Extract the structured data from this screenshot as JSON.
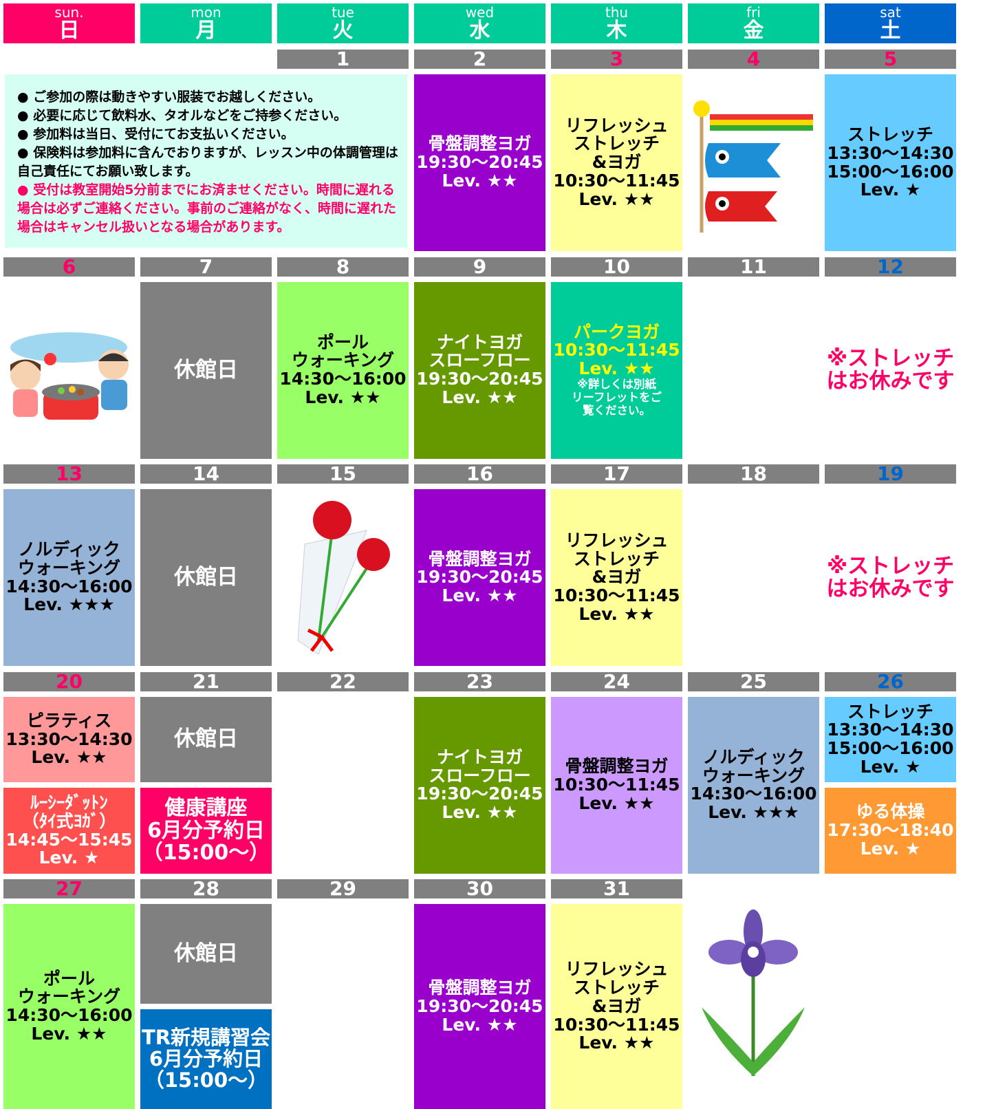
{
  "header": {
    "days": [
      {
        "en": "sun.",
        "ja": "日",
        "color": "#ff0066"
      },
      {
        "en": "mon",
        "ja": "月",
        "color": "#00cc99"
      },
      {
        "en": "tue",
        "ja": "火",
        "color": "#00cc99"
      },
      {
        "en": "wed",
        "ja": "水",
        "color": "#00cc99"
      },
      {
        "en": "thu",
        "ja": "木",
        "color": "#00cc99"
      },
      {
        "en": "fri",
        "ja": "金",
        "color": "#00cc99"
      },
      {
        "en": "sat",
        "ja": "土",
        "color": "#0066cc"
      }
    ]
  },
  "notice": {
    "items": [
      "● ご参加の際は動きやすい服装でお越しください。",
      "● 必要に応じて飲料水、タオルなどをご持参ください。",
      "● 参加料は当日、受付にてお支払いください。",
      "● 保険料は参加料に含んでおりますが、レッスン中の体調管理は自己責任にてお願い致します。"
    ],
    "warning": "● 受付は教室開始5分前までにお済ませください。時間に遅れる場合は必ずご連絡ください。事前のご連絡がなく、時間に遅れた場合はキャンセル扱いとなる場合があります。"
  },
  "weeks": [
    {
      "dates": [
        null,
        null,
        {
          "text": "1",
          "color": "#ffffff"
        },
        {
          "text": "2",
          "color": "#ffffff"
        },
        {
          "text": "3",
          "color": "#ff0066"
        },
        {
          "text": "4",
          "color": "#ff0066"
        },
        {
          "text": "5",
          "color": "#ff0066"
        }
      ],
      "cells": [
        null,
        null,
        null,
        [
          {
            "lines": [
              "骨盤調整ヨガ",
              "19:30～20:45",
              "Lev. ★★"
            ],
            "bg": "#9900cc",
            "fg": "#ffffff"
          }
        ],
        [
          {
            "lines": [
              "リフレッシュ",
              "ストレッチ",
              "&ヨガ",
              "10:30～11:45",
              "Lev. ★★"
            ],
            "bg": "#ffff99",
            "fg": "#000000"
          }
        ],
        null,
        [
          {
            "lines": [
              "ストレッチ",
              "13:30～14:30",
              "15:00～16:00",
              "Lev. ★"
            ],
            "bg": "#66ccff",
            "fg": "#000000"
          }
        ]
      ]
    },
    {
      "dates": [
        {
          "text": "6",
          "color": "#ff0066"
        },
        {
          "text": "7",
          "color": "#ffffff"
        },
        {
          "text": "8",
          "color": "#ffffff"
        },
        {
          "text": "9",
          "color": "#ffffff"
        },
        {
          "text": "10",
          "color": "#ffffff"
        },
        {
          "text": "11",
          "color": "#ffffff"
        },
        {
          "text": "12",
          "color": "#0066cc"
        }
      ],
      "cells": [
        null,
        [
          {
            "lines": [
              "休館日"
            ],
            "bg": "#808080",
            "fg": "#ffffff"
          }
        ],
        [
          {
            "lines": [
              "ポール",
              "ウォーキング",
              "14:30～16:00",
              "Lev. ★★"
            ],
            "bg": "#99ff66",
            "fg": "#000000"
          }
        ],
        [
          {
            "lines": [
              "ナイトヨガ",
              "スローフロー",
              "19:30～20:45",
              "Lev. ★★"
            ],
            "bg": "#669900",
            "fg": "#ffffff"
          }
        ],
        [
          {
            "lines": [
              "パークヨガ",
              "10:30～11:45",
              "Lev. ★★"
            ],
            "bg": "#00cc99",
            "fg": "#ffff00",
            "note": [
              "※詳しくは別紙",
              "リーフレットをご",
              "覧ください。"
            ],
            "note_color": "#ffffff"
          }
        ],
        null,
        [
          {
            "lines": [
              "※ストレッチ",
              "はお休みです"
            ],
            "bg": "#ffffff",
            "fg": "#ff0066"
          }
        ]
      ]
    },
    {
      "dates": [
        {
          "text": "13",
          "color": "#ff0066"
        },
        {
          "text": "14",
          "color": "#ffffff"
        },
        {
          "text": "15",
          "color": "#ffffff"
        },
        {
          "text": "16",
          "color": "#ffffff"
        },
        {
          "text": "17",
          "color": "#ffffff"
        },
        {
          "text": "18",
          "color": "#ffffff"
        },
        {
          "text": "19",
          "color": "#0066cc"
        }
      ],
      "cells": [
        [
          {
            "lines": [
              "ノルディック",
              "ウォーキング",
              "14:30～16:00",
              "Lev. ★★★"
            ],
            "bg": "#95b3d7",
            "fg": "#000000"
          }
        ],
        [
          {
            "lines": [
              "休館日"
            ],
            "bg": "#808080",
            "fg": "#ffffff"
          }
        ],
        null,
        [
          {
            "lines": [
              "骨盤調整ヨガ",
              "19:30～20:45",
              "Lev. ★★"
            ],
            "bg": "#9900cc",
            "fg": "#ffffff"
          }
        ],
        [
          {
            "lines": [
              "リフレッシュ",
              "ストレッチ",
              "&ヨガ",
              "10:30～11:45",
              "Lev. ★★"
            ],
            "bg": "#ffff99",
            "fg": "#000000"
          }
        ],
        null,
        [
          {
            "lines": [
              "※ストレッチ",
              "はお休みです"
            ],
            "bg": "#ffffff",
            "fg": "#ff0066"
          }
        ]
      ]
    },
    {
      "dates": [
        {
          "text": "20",
          "color": "#ff0066"
        },
        {
          "text": "21",
          "color": "#ffffff"
        },
        {
          "text": "22",
          "color": "#ffffff"
        },
        {
          "text": "23",
          "color": "#ffffff"
        },
        {
          "text": "24",
          "color": "#ffffff"
        },
        {
          "text": "25",
          "color": "#ffffff"
        },
        {
          "text": "26",
          "color": "#0066cc"
        }
      ],
      "cells": [
        [
          {
            "lines": [
              "ピラティス",
              "13:30～14:30",
              "Lev. ★★"
            ],
            "bg": "#ff9999",
            "fg": "#000000"
          },
          {
            "lines": [
              "ﾙｰｼｰﾀﾞｯﾄﾝ",
              "（ﾀｲ式ﾖｶﾞ）",
              "14:45～15:45",
              "Lev. ★"
            ],
            "bg": "#ff5050",
            "fg": "#ffffff"
          }
        ],
        [
          {
            "lines": [
              "休館日"
            ],
            "bg": "#808080",
            "fg": "#ffffff"
          },
          {
            "lines": [
              "健康講座",
              "6月分予約日",
              "（15:00～）"
            ],
            "bg": "#ff0066",
            "fg": "#ffffff"
          }
        ],
        null,
        [
          {
            "lines": [
              "ナイトヨガ",
              "スローフロー",
              "19:30～20:45",
              "Lev. ★★"
            ],
            "bg": "#669900",
            "fg": "#ffffff"
          }
        ],
        [
          {
            "lines": [
              "骨盤調整ヨガ",
              "10:30～11:45",
              "Lev. ★★"
            ],
            "bg": "#cc99ff",
            "fg": "#000000"
          }
        ],
        [
          {
            "lines": [
              "ノルディック",
              "ウォーキング",
              "14:30～16:00",
              "Lev. ★★★"
            ],
            "bg": "#95b3d7",
            "fg": "#000000"
          }
        ],
        [
          {
            "lines": [
              "ストレッチ",
              "13:30～14:30",
              "15:00～16:00",
              "Lev. ★"
            ],
            "bg": "#66ccff",
            "fg": "#000000"
          },
          {
            "lines": [
              "ゆる体操",
              "17:30～18:40",
              "Lev. ★"
            ],
            "bg": "#ff9933",
            "fg": "#ffffff"
          }
        ]
      ]
    },
    {
      "dates": [
        {
          "text": "27",
          "color": "#ff0066"
        },
        {
          "text": "28",
          "color": "#ffffff"
        },
        {
          "text": "29",
          "color": "#ffffff"
        },
        {
          "text": "30",
          "color": "#ffffff"
        },
        {
          "text": "31",
          "color": "#ffffff"
        },
        null,
        null
      ],
      "cells": [
        [
          {
            "lines": [
              "ポール",
              "ウォーキング",
              "14:30～16:00",
              "Lev. ★★"
            ],
            "bg": "#99ff66",
            "fg": "#000000"
          }
        ],
        [
          {
            "lines": [
              "休館日"
            ],
            "bg": "#808080",
            "fg": "#ffffff"
          },
          {
            "lines": [
              "TR新規講習会",
              "6月分予約日",
              "（15:00～）"
            ],
            "bg": "#0070c0",
            "fg": "#ffffff"
          }
        ],
        null,
        [
          {
            "lines": [
              "骨盤調整ヨガ",
              "19:30～20:45",
              "Lev. ★★"
            ],
            "bg": "#9900cc",
            "fg": "#ffffff"
          }
        ],
        [
          {
            "lines": [
              "リフレッシュ",
              "ストレッチ",
              "&ヨガ",
              "10:30～11:45",
              "Lev. ★★"
            ],
            "bg": "#ffff99",
            "fg": "#000000"
          }
        ],
        null,
        null
      ]
    }
  ]
}
